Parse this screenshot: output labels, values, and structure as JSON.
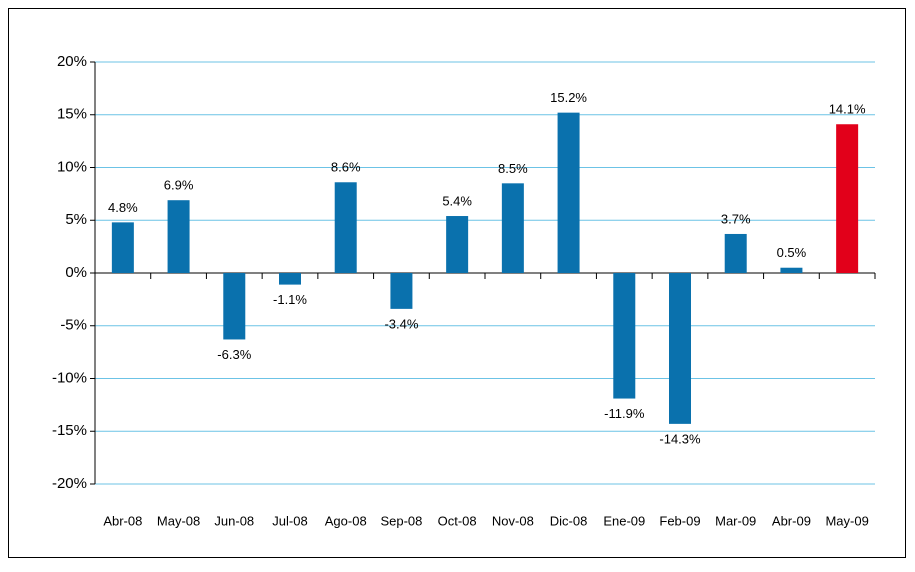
{
  "chart_data": {
    "type": "bar",
    "categories": [
      "Abr-08",
      "May-08",
      "Jun-08",
      "Jul-08",
      "Ago-08",
      "Sep-08",
      "Oct-08",
      "Nov-08",
      "Dic-08",
      "Ene-09",
      "Feb-09",
      "Mar-09",
      "Abr-09",
      "May-09"
    ],
    "values": [
      4.8,
      6.9,
      -6.3,
      -1.1,
      8.6,
      -3.4,
      5.4,
      8.5,
      15.2,
      -11.9,
      -14.3,
      3.7,
      0.5,
      14.1
    ],
    "value_labels": [
      "4.8%",
      "6.9%",
      "-6.3%",
      "-1.1%",
      "8.6%",
      "-3.4%",
      "5.4%",
      "8.5%",
      "15.2%",
      "-11.9%",
      "-14.3%",
      "3.7%",
      "0.5%",
      "14.1%"
    ],
    "colors": [
      "#0a71ad",
      "#0a71ad",
      "#0a71ad",
      "#0a71ad",
      "#0a71ad",
      "#0a71ad",
      "#0a71ad",
      "#0a71ad",
      "#0a71ad",
      "#0a71ad",
      "#0a71ad",
      "#0a71ad",
      "#0a71ad",
      "#e2001a"
    ],
    "ylim": [
      -20,
      20
    ],
    "yticks": [
      {
        "value": -20,
        "label": "-20%"
      },
      {
        "value": -15,
        "label": "-15%"
      },
      {
        "value": -10,
        "label": "-10%"
      },
      {
        "value": -5,
        "label": "-5%"
      },
      {
        "value": 0,
        "label": "0%"
      },
      {
        "value": 5,
        "label": "5%"
      },
      {
        "value": 10,
        "label": "10%"
      },
      {
        "value": 15,
        "label": "15%"
      },
      {
        "value": 20,
        "label": "20%"
      }
    ],
    "grid": true
  }
}
